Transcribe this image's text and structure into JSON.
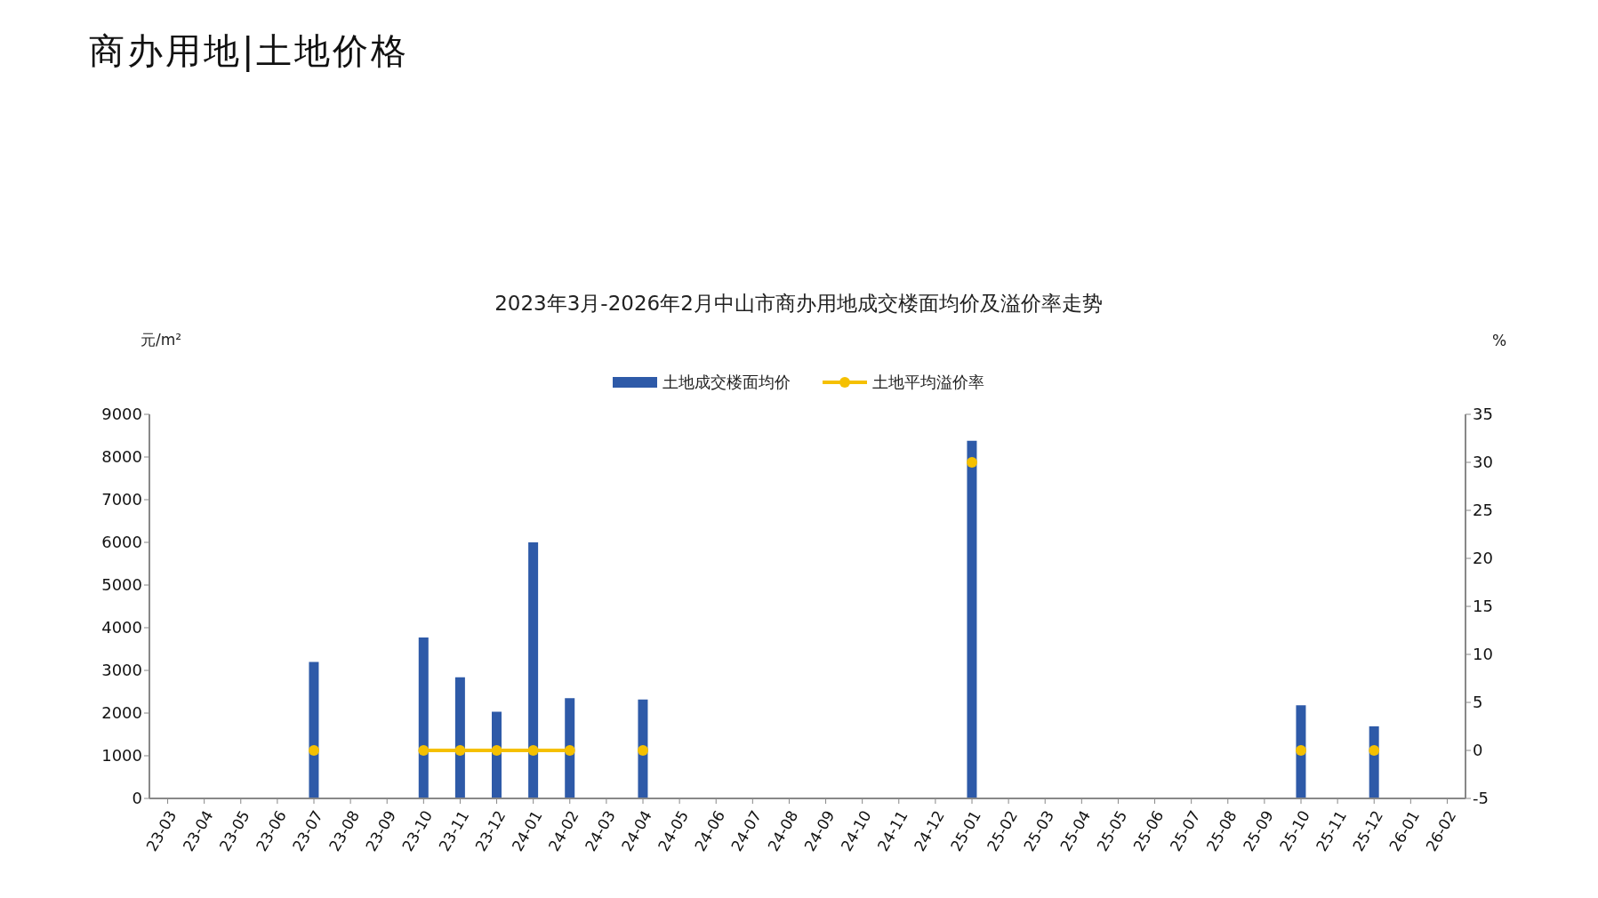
{
  "chart_data": {
    "type": "bar",
    "title": "2023年3月-2026年2月中山市商办用地成交楼面均价及溢价率走势",
    "annotations": [
      "商办用地|土地价格"
    ],
    "ylabel": "元/m²",
    "y2label": "%",
    "categories": [
      "23-03",
      "23-04",
      "23-05",
      "23-06",
      "23-07",
      "23-08",
      "23-09",
      "23-10",
      "23-11",
      "23-12",
      "24-01",
      "24-02",
      "24-03",
      "24-04",
      "24-05",
      "24-06",
      "24-07",
      "24-08",
      "24-09",
      "24-10",
      "24-11",
      "24-12",
      "25-01",
      "25-02",
      "25-03",
      "25-04",
      "25-05",
      "25-06",
      "25-07",
      "25-08",
      "25-09",
      "25-10",
      "25-11",
      "25-12",
      "26-01",
      "26-02"
    ],
    "series": [
      {
        "name": "土地成交楼面均价",
        "color": "#2e5aa8",
        "values": [
          null,
          null,
          null,
          null,
          3200,
          null,
          null,
          3770,
          2840,
          2030,
          6000,
          2350,
          null,
          2320,
          null,
          null,
          null,
          null,
          null,
          null,
          null,
          null,
          8380,
          null,
          null,
          null,
          null,
          null,
          null,
          null,
          null,
          2180,
          null,
          1690,
          null,
          null
        ]
      },
      {
        "name": "土地平均溢价率",
        "type": "line",
        "axis": "y2",
        "color": "#f5c000",
        "marker": "circle",
        "values": [
          null,
          null,
          null,
          null,
          0,
          null,
          null,
          0,
          0,
          0,
          0,
          0,
          null,
          0,
          null,
          null,
          null,
          null,
          null,
          null,
          null,
          null,
          30,
          null,
          null,
          null,
          null,
          null,
          null,
          null,
          null,
          0,
          null,
          0,
          null,
          null
        ]
      }
    ],
    "ylim": [
      0,
      9000
    ],
    "yticks": [
      0,
      1000,
      2000,
      3000,
      4000,
      5000,
      6000,
      7000,
      8000,
      9000
    ],
    "y2lim": [
      -5,
      35
    ],
    "y2ticks": [
      -5,
      0,
      5,
      10,
      15,
      20,
      25,
      30,
      35
    ],
    "legend": "top"
  }
}
